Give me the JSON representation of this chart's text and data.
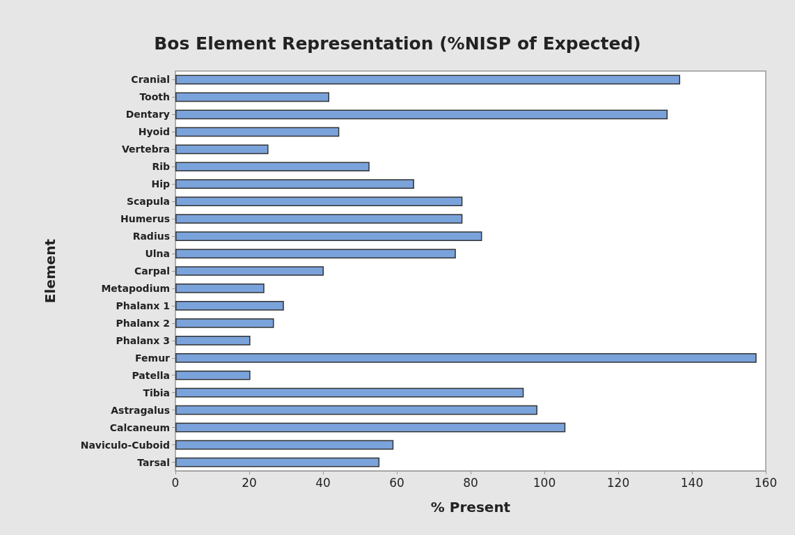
{
  "chart_data": {
    "type": "bar",
    "orientation": "horizontal",
    "title": "Bos Element Representation (%NISP of Expected)",
    "xlabel": "% Present",
    "ylabel": "Element",
    "categories": [
      "Cranial",
      "Tooth",
      "Dentary",
      "Hyoid",
      "Vertebra",
      "Rib",
      "Hip",
      "Scapula",
      "Humerus",
      "Radius",
      "Ulna",
      "Carpal",
      "Metapodium",
      "Phalanx 1",
      "Phalanx 2",
      "Phalanx 3",
      "Femur",
      "Patella",
      "Tibia",
      "Astragalus",
      "Calcaneum",
      "Naviculo-Cuboid",
      "Tarsal"
    ],
    "values": [
      136.8,
      41.7,
      133.4,
      44.4,
      25.2,
      52.6,
      64.7,
      77.8,
      77.8,
      83.1,
      76.0,
      40.2,
      24.1,
      29.4,
      26.7,
      20.3,
      157.5,
      20.3,
      94.4,
      98.1,
      105.7,
      59.1,
      55.3
    ],
    "color": "#7ba3db",
    "xlim": [
      0,
      160
    ],
    "xticks": [
      0,
      20,
      40,
      60,
      80,
      100,
      120,
      140,
      160
    ]
  }
}
